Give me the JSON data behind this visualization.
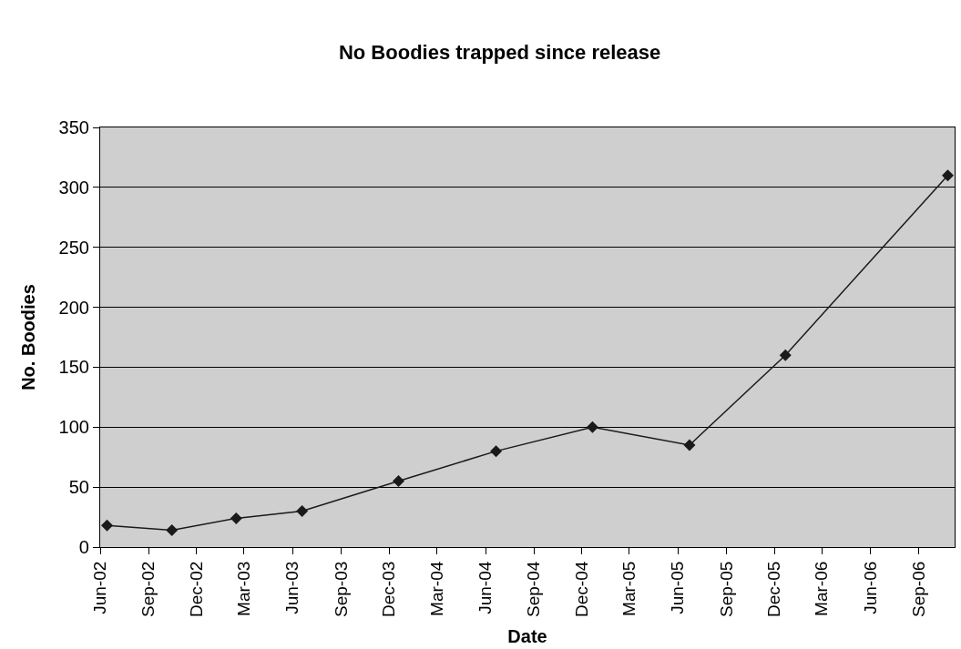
{
  "chart_data": {
    "type": "line",
    "title": "No Boodies trapped since release",
    "xlabel": "Date",
    "ylabel": "No. Boodies",
    "x": [
      "2002-06-14",
      "2002-10-15",
      "2003-02-14",
      "2003-06-19",
      "2003-12-19",
      "2004-06-21",
      "2004-12-21",
      "2005-06-23",
      "2005-12-22",
      "2006-10-26"
    ],
    "series": [
      {
        "color": "#1a1a1a",
        "values": [
          18,
          14,
          24,
          30,
          55,
          80,
          100,
          85,
          160,
          310
        ]
      }
    ],
    "xlim": [
      "2002-06-01",
      "2006-11-08"
    ],
    "xticks": [
      {
        "value": "2002-06-01",
        "label": "Jun-02"
      },
      {
        "value": "2002-09-01",
        "label": "Sep-02"
      },
      {
        "value": "2002-12-01",
        "label": "Dec-02"
      },
      {
        "value": "2003-03-01",
        "label": "Mar-03"
      },
      {
        "value": "2003-06-01",
        "label": "Jun-03"
      },
      {
        "value": "2003-09-01",
        "label": "Sep-03"
      },
      {
        "value": "2003-12-01",
        "label": "Dec-03"
      },
      {
        "value": "2004-03-01",
        "label": "Mar-04"
      },
      {
        "value": "2004-06-01",
        "label": "Jun-04"
      },
      {
        "value": "2004-09-01",
        "label": "Sep-04"
      },
      {
        "value": "2004-12-01",
        "label": "Dec-04"
      },
      {
        "value": "2005-03-01",
        "label": "Mar-05"
      },
      {
        "value": "2005-06-01",
        "label": "Jun-05"
      },
      {
        "value": "2005-09-01",
        "label": "Sep-05"
      },
      {
        "value": "2005-12-01",
        "label": "Dec-05"
      },
      {
        "value": "2006-03-01",
        "label": "Mar-06"
      },
      {
        "value": "2006-06-01",
        "label": "Jun-06"
      },
      {
        "value": "2006-09-01",
        "label": "Sep-06"
      }
    ],
    "ylim": [
      0,
      350
    ],
    "yticks": [
      0,
      50,
      100,
      150,
      200,
      250,
      300,
      350
    ],
    "grid": "y",
    "marker": "diamond",
    "line_style": "solid"
  }
}
